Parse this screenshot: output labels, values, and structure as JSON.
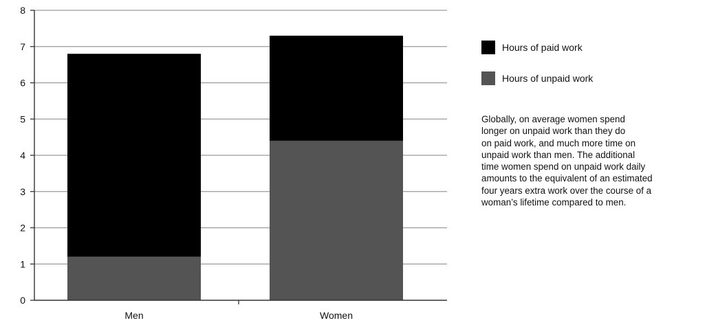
{
  "chart_data": {
    "type": "bar",
    "stacked": true,
    "categories": [
      "Men",
      "Women"
    ],
    "series": [
      {
        "name": "Hours of unpaid work",
        "values": [
          1.2,
          4.4
        ],
        "color": "#545454"
      },
      {
        "name": "Hours of paid work",
        "values": [
          5.6,
          2.9
        ],
        "color": "#000000"
      }
    ],
    "y_ticks": [
      "0",
      "1",
      "2",
      "3",
      "4",
      "5",
      "6",
      "7",
      "8"
    ],
    "ylim": [
      0,
      8
    ],
    "grid": true,
    "legend_placement": "right",
    "title": "",
    "xlabel": "",
    "ylabel": ""
  },
  "legend": {
    "items": [
      {
        "label": "Hours of paid work",
        "color": "#000000"
      },
      {
        "label": "Hours of unpaid work",
        "color": "#545454"
      }
    ]
  },
  "annotation": {
    "lines": [
      "Globally, on average women spend",
      "longer on unpaid work than they do",
      "on paid work, and much more time on",
      "unpaid work than men. The additional",
      "time women spend on unpaid work daily",
      "amounts to the equivalent of an estimated",
      "four years extra work over the course of a",
      "woman’s lifetime compared to men."
    ]
  }
}
